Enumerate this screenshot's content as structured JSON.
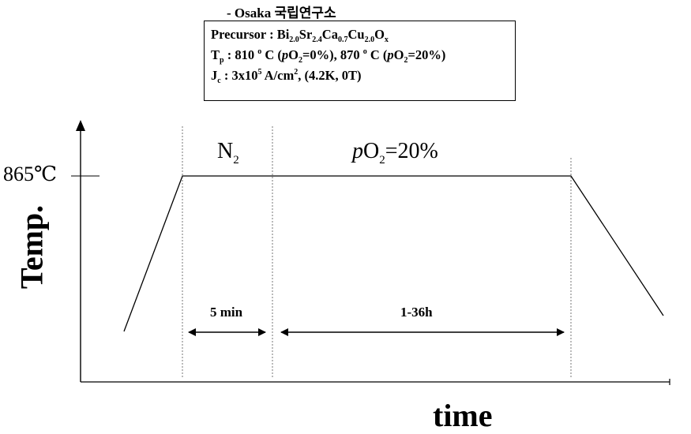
{
  "header": {
    "source": "- Osaka 국립연구소"
  },
  "info_box": {
    "precursor_label": "Precursor : ",
    "precursor_formula": [
      {
        "t": "Bi",
        "sub": "2.0"
      },
      {
        "t": "Sr",
        "sub": "2.4"
      },
      {
        "t": "Ca",
        "sub": "0.7"
      },
      {
        "t": "Cu",
        "sub": "2.0"
      },
      {
        "t": "O",
        "sub": "x"
      }
    ],
    "tp_symbol": "T",
    "tp_sub": "p",
    "tp_text_1": " : 810 ",
    "tp_deg_1": "o",
    "tp_text_2": " C (",
    "tp_p1": "p",
    "tp_o1": "O",
    "tp_o1_sub": "2",
    "tp_text_3": "=0%), 870 ",
    "tp_deg_2": "o",
    "tp_text_4": " C (",
    "tp_p2": "p",
    "tp_o2": "O",
    "tp_o2_sub": "2",
    "tp_text_5": "=20%)",
    "jc_symbol": "J",
    "jc_sub": "c",
    "jc_text_1": " : 3x10",
    "jc_exp": "5",
    "jc_text_2": " A/cm",
    "jc_exp2": "2",
    "jc_text_3": ", (4.2K, 0T)"
  },
  "diagram": {
    "y_tick_label": "865℃",
    "y_axis_label": "Temp.",
    "x_axis_label": "time",
    "segment_1_label": "N",
    "segment_1_sub": "2",
    "segment_2_p": "p",
    "segment_2_o": "O",
    "segment_2_sub": "2",
    "segment_2_rest": "=20%",
    "duration_1": "5 min",
    "duration_2": "1-36h"
  }
}
